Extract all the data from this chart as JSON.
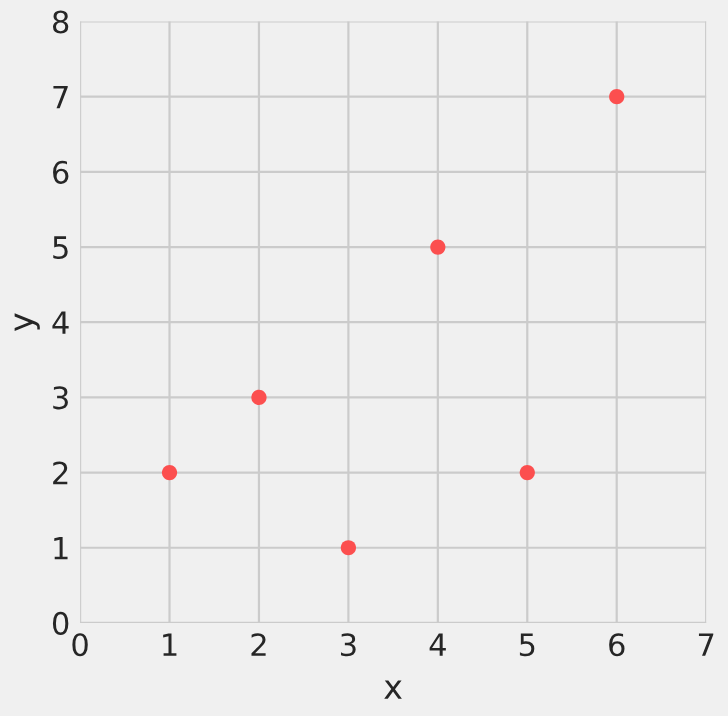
{
  "chart_data": {
    "type": "scatter",
    "xlabel": "x",
    "ylabel": "y",
    "x": [
      1,
      2,
      3,
      4,
      5,
      6
    ],
    "series": [
      {
        "color": "#fc4f4f",
        "values": [
          2,
          3,
          1,
          5,
          2,
          7
        ]
      }
    ],
    "xlim": [
      0,
      7
    ],
    "ylim": [
      0,
      8
    ],
    "xticks": [
      0,
      1,
      2,
      3,
      4,
      5,
      6,
      7
    ],
    "yticks": [
      0,
      1,
      2,
      3,
      4,
      5,
      6,
      7,
      8
    ],
    "grid": true,
    "marker": "circle"
  }
}
